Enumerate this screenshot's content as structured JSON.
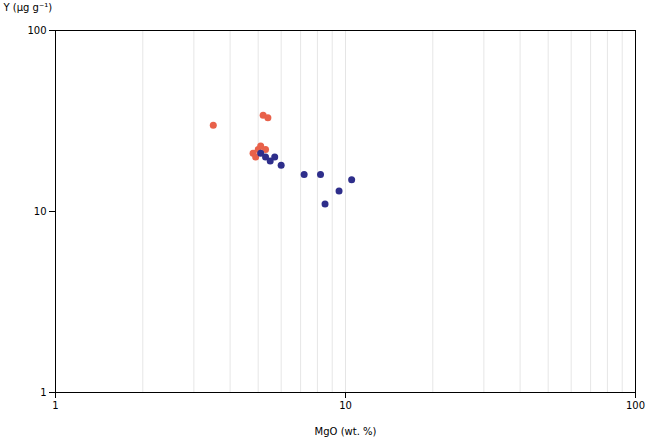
{
  "chart_data": {
    "type": "scatter",
    "title": "",
    "xlabel": "MgO (wt. %)",
    "ylabel": "Y (μg g⁻¹)",
    "log": true,
    "grid": "x",
    "xlim": [
      1,
      100
    ],
    "ylim": [
      1,
      100
    ],
    "xticks": [
      1,
      10,
      100
    ],
    "yticks": [
      1,
      10,
      100
    ],
    "series": [
      {
        "color": "#E8614A",
        "x": [
          3.5,
          5.2,
          5.4,
          4.8,
          5.0,
          5.1,
          4.9,
          5.3
        ],
        "values": [
          30,
          34,
          33,
          21,
          22,
          23,
          20,
          22
        ]
      },
      {
        "color": "#2E2E8B",
        "x": [
          5.1,
          5.3,
          5.5,
          5.7,
          6.0,
          7.2,
          8.2,
          8.5,
          9.5,
          10.5
        ],
        "values": [
          21,
          20,
          19,
          20,
          18,
          16,
          16,
          11,
          13,
          15
        ]
      }
    ]
  }
}
